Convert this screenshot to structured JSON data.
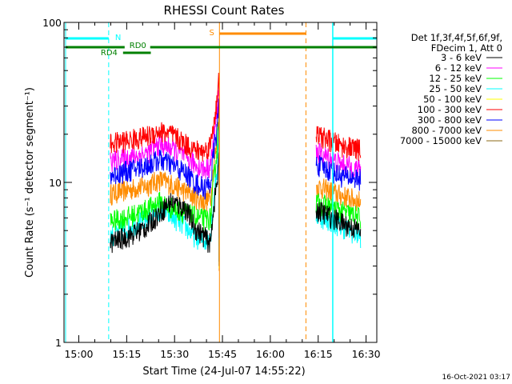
{
  "chart_data": {
    "type": "line",
    "title": "RHESSI Count Rates",
    "xlabel": "Start Time (24-Jul-07 14:55:22)",
    "ylabel": "Count Rate (s⁻¹ detector segment⁻¹)",
    "y_scale": "log",
    "ylim": [
      1,
      100
    ],
    "y_ticks": [
      "1",
      "10",
      "100"
    ],
    "x_range_minutes": [
      14.5,
      1474
    ],
    "x_ticks": [
      "15:00",
      "15:15",
      "15:30",
      "15:45",
      "16:00",
      "16:15",
      "16:30"
    ],
    "grid": false,
    "legend_position": "right",
    "legend_header": [
      "Det 1f,3f,4f,5f,6f,9f,",
      "FDecim 1, Att 0"
    ],
    "series": [
      {
        "name": "3 - 6 keV",
        "color": "#000000",
        "shape": [
          [
            14.5,
            4.2
          ],
          [
            21,
            4.7
          ],
          [
            26,
            5.3
          ],
          [
            30,
            6.5
          ],
          [
            33.5,
            7.6
          ],
          [
            38,
            6.9
          ],
          [
            41,
            5.2
          ],
          [
            44,
            4.6
          ],
          [
            46,
            4.1
          ],
          [
            46.5,
            6.0
          ],
          [
            48,
            10.0
          ],
          [
            48.6,
            14.0
          ],
          [
            48.6,
            3.2
          ]
        ],
        "post": [
          [
            79,
            6.8
          ],
          [
            87,
            5.6
          ],
          [
            93,
            5.0
          ]
        ]
      },
      {
        "name": "6 - 12 keV",
        "color": "#ff00ff",
        "shape": [
          [
            14.5,
            13.5
          ],
          [
            21,
            14.5
          ],
          [
            26,
            15.2
          ],
          [
            30,
            17.5
          ],
          [
            33.5,
            16.5
          ],
          [
            38,
            14.5
          ],
          [
            41,
            13.0
          ],
          [
            44,
            12.0
          ],
          [
            46,
            13.0
          ],
          [
            46.5,
            16.0
          ],
          [
            48,
            27.0
          ],
          [
            48.6,
            45.0
          ],
          [
            48.6,
            10.0
          ]
        ],
        "post": [
          [
            79,
            15.5
          ],
          [
            87,
            13.0
          ],
          [
            93,
            12.0
          ]
        ]
      },
      {
        "name": "12 - 25 keV",
        "color": "#00ff00",
        "shape": [
          [
            14.5,
            5.7
          ],
          [
            21,
            6.2
          ],
          [
            26,
            6.8
          ],
          [
            30,
            7.6
          ],
          [
            33.5,
            7.0
          ],
          [
            38,
            6.5
          ],
          [
            41,
            6.1
          ],
          [
            44,
            5.9
          ],
          [
            46,
            6.0
          ],
          [
            46.5,
            8.0
          ],
          [
            48,
            16.0
          ],
          [
            48.6,
            30.0
          ],
          [
            48.6,
            5.0
          ]
        ],
        "post": [
          [
            79,
            7.5
          ],
          [
            87,
            6.6
          ],
          [
            93,
            6.0
          ]
        ]
      },
      {
        "name": "25 - 50 keV",
        "color": "#00ffff",
        "shape": [
          [
            14.5,
            4.6
          ],
          [
            21,
            5.3
          ],
          [
            26,
            5.9
          ],
          [
            30,
            6.9
          ],
          [
            33.5,
            6.2
          ],
          [
            38,
            5.3
          ],
          [
            41,
            4.6
          ],
          [
            44,
            4.3
          ],
          [
            46,
            4.8
          ],
          [
            46.5,
            6.5
          ],
          [
            48,
            12.0
          ],
          [
            48.6,
            22.0
          ],
          [
            48.6,
            4.0
          ]
        ],
        "post": [
          [
            79,
            6.3
          ],
          [
            87,
            5.3
          ],
          [
            93,
            4.6
          ]
        ]
      },
      {
        "name": "50 - 100 keV",
        "color": "#ffff00",
        "shape": [
          [
            48.6,
            20.0
          ],
          [
            48.6,
            2.9
          ]
        ],
        "post": []
      },
      {
        "name": "100 - 300 keV",
        "color": "#ff0000",
        "shape": [
          [
            14.5,
            17.5
          ],
          [
            21,
            18.5
          ],
          [
            26,
            19.5
          ],
          [
            30,
            21.0
          ],
          [
            33.5,
            20.0
          ],
          [
            38,
            17.5
          ],
          [
            41,
            16.0
          ],
          [
            44,
            15.6
          ],
          [
            46,
            17.5
          ],
          [
            46.5,
            21.0
          ],
          [
            48,
            32.0
          ],
          [
            48.6,
            45.0
          ],
          [
            48.6,
            18.0
          ]
        ],
        "post": [
          [
            79,
            20.0
          ],
          [
            87,
            17.0
          ],
          [
            93,
            16.0
          ]
        ]
      },
      {
        "name": "300 - 800 keV",
        "color": "#0000ff",
        "shape": [
          [
            14.5,
            11.0
          ],
          [
            21,
            12.0
          ],
          [
            26,
            12.8
          ],
          [
            30,
            14.0
          ],
          [
            33.5,
            13.0
          ],
          [
            38,
            11.5
          ],
          [
            41,
            10.0
          ],
          [
            44,
            9.2
          ],
          [
            46,
            10.0
          ],
          [
            46.5,
            13.0
          ],
          [
            48,
            22.0
          ],
          [
            48.6,
            33.0
          ],
          [
            48.6,
            4.5
          ]
        ],
        "post": [
          [
            79,
            13.0
          ],
          [
            87,
            11.0
          ],
          [
            93,
            10.5
          ]
        ]
      },
      {
        "name": "800 - 7000 keV",
        "color": "#ff8c00",
        "shape": [
          [
            14.5,
            8.5
          ],
          [
            21,
            9.1
          ],
          [
            26,
            9.6
          ],
          [
            30,
            10.4
          ],
          [
            33.5,
            9.8
          ],
          [
            38,
            8.8
          ],
          [
            41,
            8.1
          ],
          [
            44,
            7.6
          ],
          [
            46,
            8.0
          ],
          [
            46.5,
            10.5
          ],
          [
            48,
            18.0
          ],
          [
            48.6,
            30.0
          ],
          [
            48.6,
            2.8
          ]
        ],
        "post": [
          [
            79,
            9.5
          ],
          [
            87,
            8.3
          ],
          [
            93,
            7.6
          ]
        ]
      },
      {
        "name": "7000 - 15000 keV",
        "color": "#8b6914",
        "shape": [
          [
            48.6,
            25.0
          ],
          [
            48.6,
            3.0
          ]
        ],
        "post": []
      }
    ],
    "attenuator_bars": [
      {
        "label": "N",
        "color": "#00ffff"
      },
      {
        "label": "RD0",
        "color": "#008000"
      },
      {
        "label": "RD4",
        "color": "#008000"
      },
      {
        "label": "S",
        "color": "#ff8c00"
      }
    ]
  },
  "footer": {
    "timestamp": "16-Oct-2021 03:17"
  }
}
